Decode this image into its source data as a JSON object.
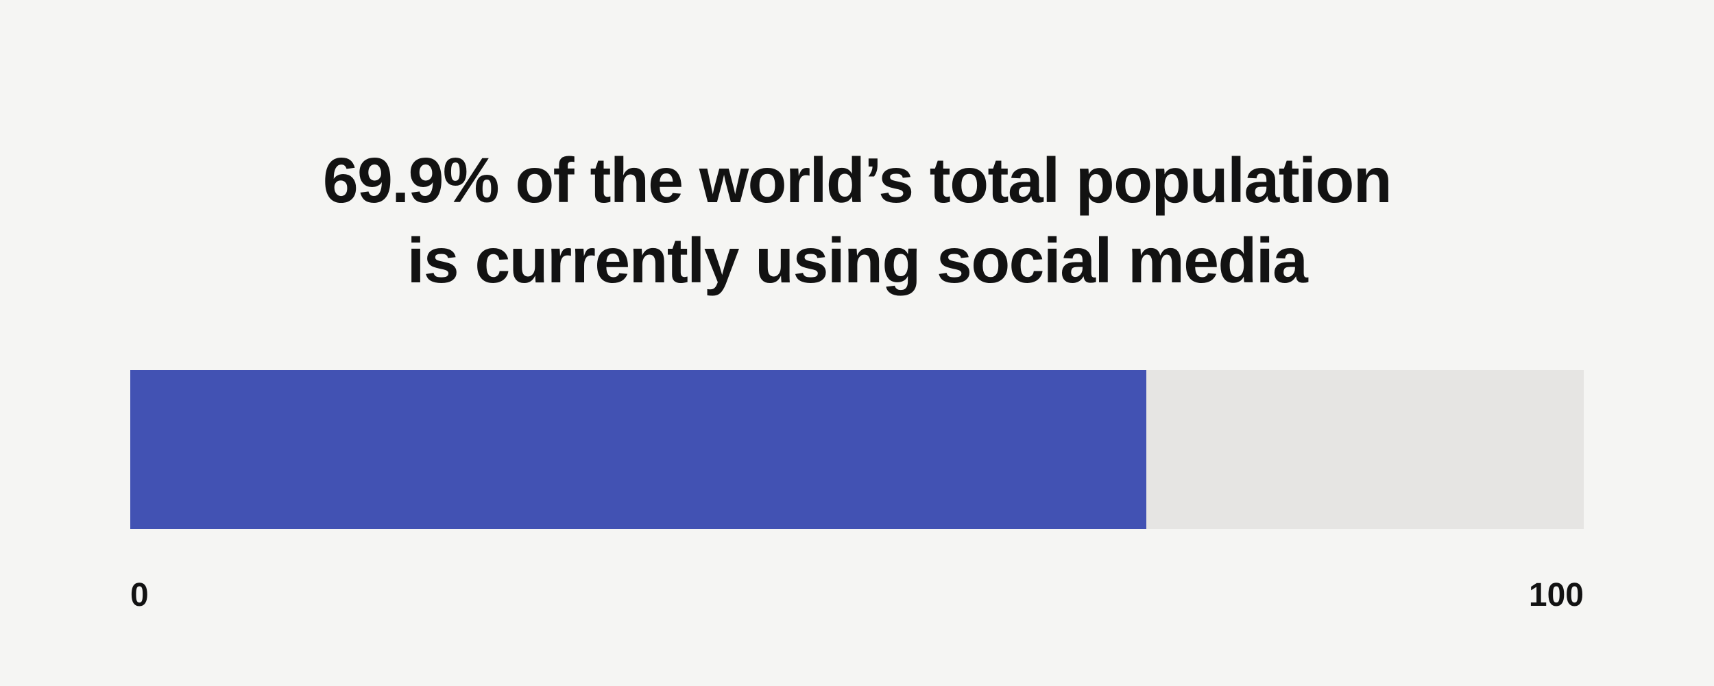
{
  "chart_data": {
    "type": "bar",
    "title": "69.9% of the world’s total population is currently using social media",
    "title_lines": [
      "69.9% of the world’s total population",
      "is currently using social media"
    ],
    "categories": [
      "World population using social media"
    ],
    "values": [
      69.9
    ],
    "value_unit": "%",
    "xlabel": "",
    "ylabel": "",
    "xlim": [
      0,
      100
    ],
    "axis_tick_labels": {
      "min": "0",
      "max": "100"
    },
    "legend": "none",
    "grid": "off",
    "orientation": "horizontal",
    "colors": {
      "background": "#f5f5f3",
      "bar_fill": "#4252b3",
      "bar_track": "#e6e5e3",
      "text": "#121212"
    }
  }
}
